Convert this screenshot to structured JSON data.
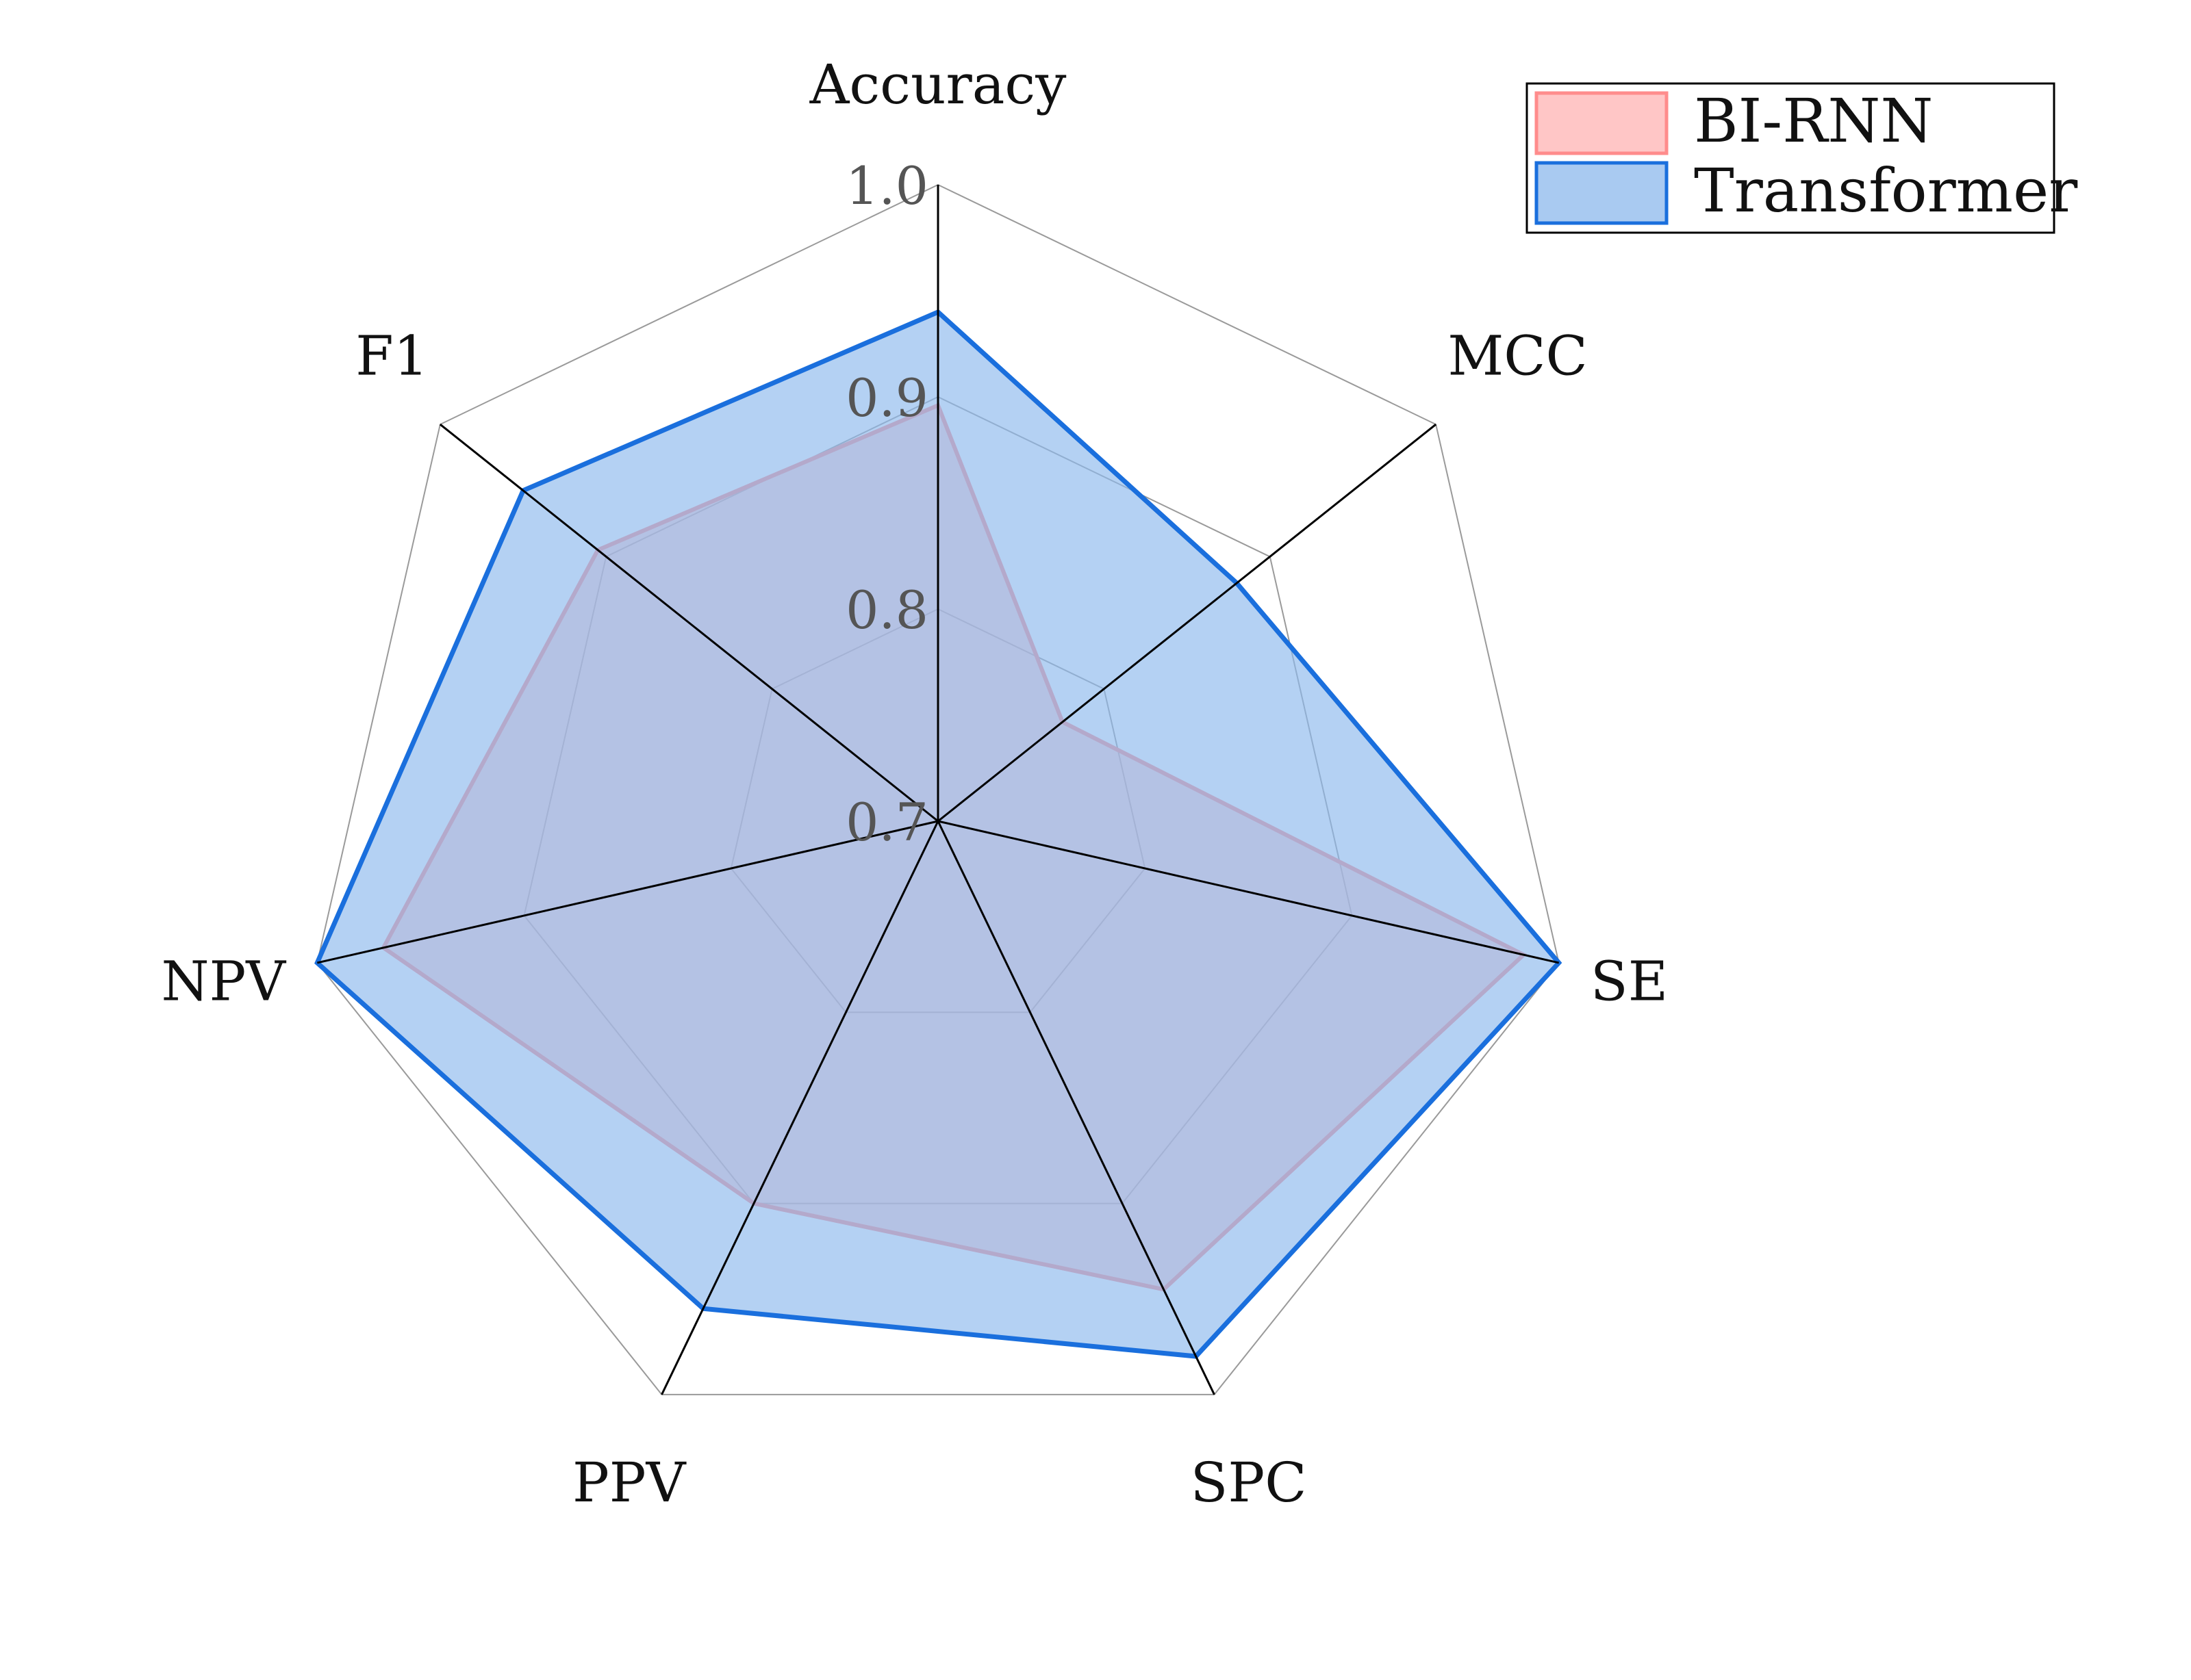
{
  "chart_data": {
    "type": "radar",
    "axes": [
      "Accuracy",
      "MCC",
      "SE",
      "SPC",
      "PPV",
      "NPV",
      "F1"
    ],
    "radial_ticks": [
      0.7,
      0.8,
      0.9,
      1.0
    ],
    "radial_tick_labels": [
      "0.7",
      "0.8",
      "0.9",
      "1.0"
    ],
    "rlim": [
      0.7,
      1.0
    ],
    "grid": true,
    "legend_position": "top-right",
    "series": [
      {
        "name": "BI-RNN",
        "values": [
          0.896,
          0.775,
          0.983,
          0.945,
          0.9,
          0.968,
          0.905
        ],
        "color": "#ff8c8c",
        "fill": "#ffb3b3"
      },
      {
        "name": "Transformer",
        "values": [
          0.94,
          0.88,
          1.0,
          0.98,
          0.955,
          1.0,
          0.95
        ],
        "color": "#1a6fdd",
        "fill": "#8cb8ec"
      }
    ]
  }
}
